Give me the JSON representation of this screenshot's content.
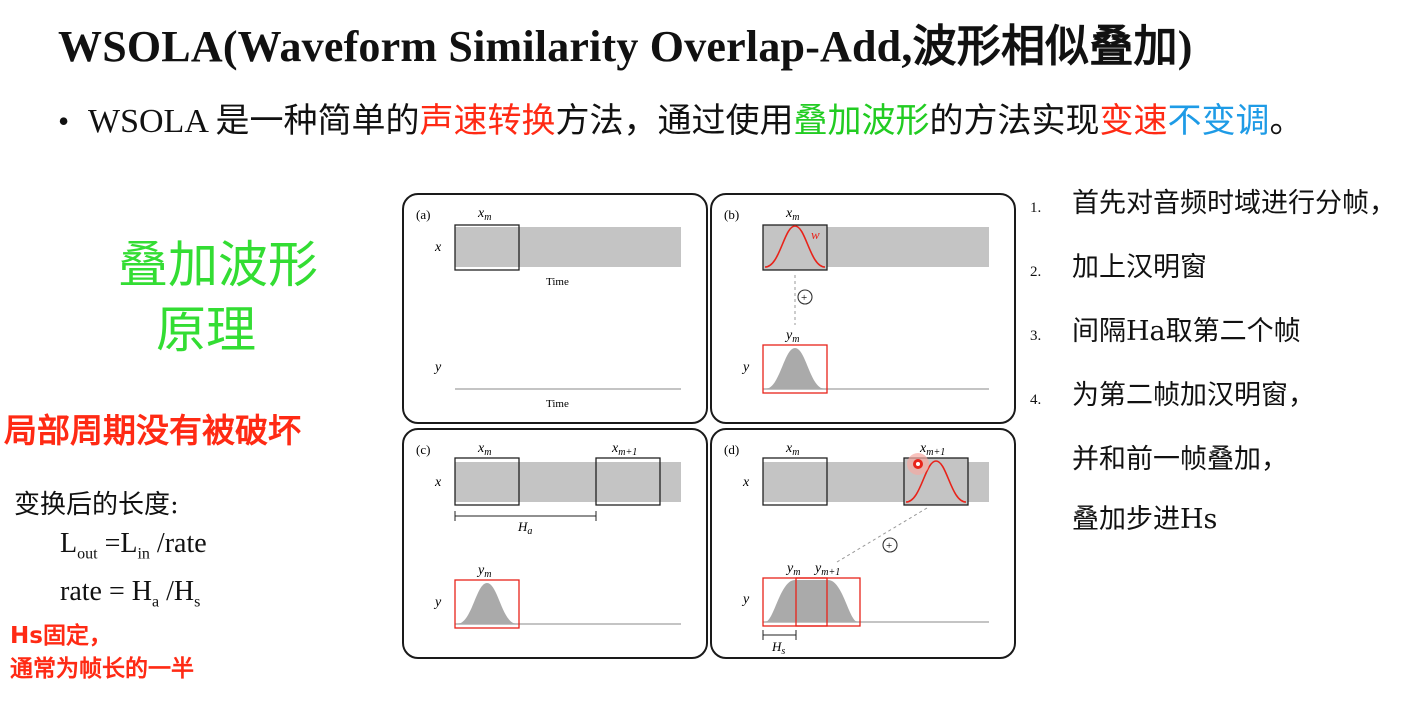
{
  "title": "WSOLA(Waveform Similarity Overlap-Add,波形相似叠加)",
  "bullet": {
    "p1": "WSOLA 是一种简单的",
    "p2": "声速转换",
    "p3": "方法，通过使用",
    "p4": "叠加波形",
    "p5": "的方法实现",
    "p6": "变速",
    "p7": "不变调",
    "p8": "。"
  },
  "left": {
    "principle_line1": "叠加波形",
    "principle_line2": "原理",
    "note_red": "局部周期没有被破坏",
    "length_label": "变换后的长度:",
    "f1_L": "L",
    "f1_out": "out",
    "f1_eq": " =L",
    "f1_in": "in",
    "f1_rest": " /rate",
    "f2_rate": "rate = H",
    "f2_a": "a",
    "f2_slash": " /H",
    "f2_s": "s",
    "hs_note1": "Hs固定，",
    "hs_note2": "通常为帧长的一半"
  },
  "steps": [
    {
      "num": "1.",
      "text": "首先对音频时域进行分帧，"
    },
    {
      "num": "2.",
      "text": "加上汉明窗"
    },
    {
      "num": "3.",
      "text": "间隔Ha取第二个帧"
    },
    {
      "num": "4.",
      "text": "为第二帧加汉明窗，"
    },
    {
      "num": "",
      "text": "并和前一帧叠加，"
    },
    {
      "num": "",
      "text": "叠加步进Hs"
    }
  ],
  "diagram": {
    "panel_a": "(a)",
    "panel_b": "(b)",
    "panel_c": "(c)",
    "panel_d": "(d)",
    "x": "x",
    "y": "y",
    "xm": "x",
    "m": "m",
    "m1": "m+1",
    "ym": "y",
    "time": "Time",
    "w": "w",
    "Ha": "H",
    "a": "a",
    "Hs": "H",
    "s": "s",
    "plus": "+"
  },
  "colors": {
    "red": "#ff2a14",
    "green": "#22cc22",
    "blue": "#1e9be6",
    "gray_band": "#c4c4c4"
  }
}
